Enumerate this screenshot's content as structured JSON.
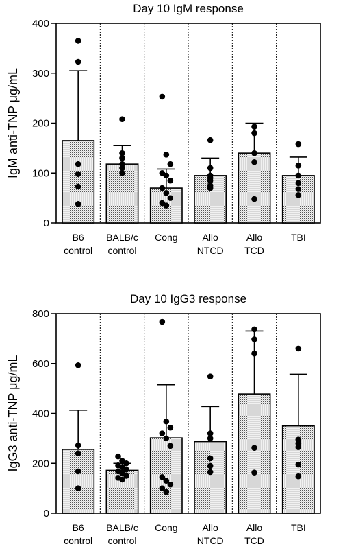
{
  "chart_data": [
    {
      "type": "bar",
      "title": "Day 10 IgM response",
      "ylabel": "IgM anti-TNP μg/mL",
      "ylim": [
        0,
        400
      ],
      "yticks": [
        0,
        100,
        200,
        300,
        400
      ],
      "categories": [
        [
          "B6",
          "control"
        ],
        [
          "BALB/c",
          "control"
        ],
        [
          "Cong"
        ],
        [
          "Allo",
          "NTCD"
        ],
        [
          "Allo",
          "TCD"
        ],
        [
          "TBI"
        ]
      ],
      "series": [
        {
          "values": [
            165,
            118,
            70,
            95,
            140,
            95
          ]
        }
      ],
      "error_bars": [
        305,
        155,
        108,
        130,
        200,
        132
      ],
      "points": [
        [
          365,
          323,
          118,
          98,
          73,
          38
        ],
        [
          208,
          140,
          130,
          118,
          110,
          100
        ],
        [
          253,
          137,
          118,
          100,
          95,
          85,
          70,
          60,
          50,
          40,
          35
        ],
        [
          166,
          110,
          95,
          90,
          85,
          75,
          70
        ],
        [
          193,
          180,
          140,
          122,
          48
        ],
        [
          158,
          115,
          95,
          80,
          68,
          56
        ]
      ],
      "grid": false
    },
    {
      "type": "bar",
      "title": "Day 10 IgG3 response",
      "ylabel": "IgG3 anti-TNP μg/mL",
      "ylim": [
        0,
        800
      ],
      "yticks": [
        0,
        200,
        400,
        600,
        800
      ],
      "categories": [
        [
          "B6",
          "control"
        ],
        [
          "BALB/c",
          "control"
        ],
        [
          "Cong"
        ],
        [
          "Allo",
          "NTCD"
        ],
        [
          "Allo",
          "TCD"
        ],
        [
          "TBI"
        ]
      ],
      "series": [
        {
          "values": [
            256,
            172,
            302,
            287,
            478,
            350
          ]
        }
      ],
      "error_bars": [
        413,
        200,
        515,
        428,
        730,
        557
      ],
      "points": [
        [
          593,
          272,
          240,
          168,
          100
        ],
        [
          228,
          210,
          200,
          192,
          185,
          175,
          168,
          160,
          150,
          142,
          135
        ],
        [
          767,
          368,
          343,
          320,
          300,
          270,
          145,
          130,
          115,
          100,
          85
        ],
        [
          548,
          320,
          300,
          220,
          190,
          165
        ],
        [
          737,
          697,
          640,
          262,
          163
        ],
        [
          660,
          295,
          280,
          265,
          195,
          148
        ]
      ],
      "grid": false
    }
  ]
}
